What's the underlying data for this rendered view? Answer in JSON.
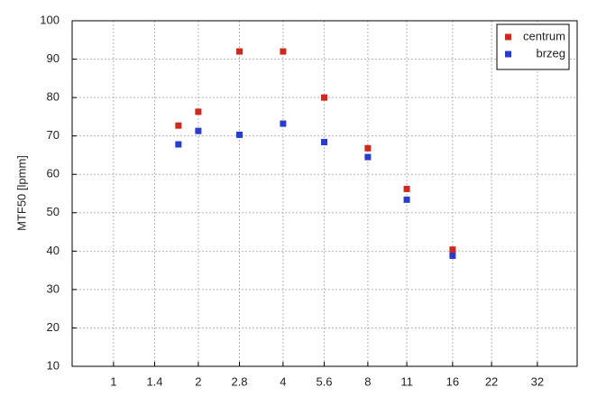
{
  "chart_data": {
    "type": "scatter",
    "y_label": "MTF50 [lpmm]",
    "xscale": "log",
    "xlim": [
      0.713,
      44.3
    ],
    "xticks": [
      1,
      1.4,
      2,
      2.8,
      4,
      5.6,
      8,
      11,
      16,
      22,
      32
    ],
    "ylim": [
      10,
      100
    ],
    "yticks": [
      10,
      20,
      30,
      40,
      50,
      60,
      70,
      80,
      90,
      100
    ],
    "grid": true,
    "legend": "upper right",
    "series": [
      {
        "name": "centrum",
        "color": "#cc2a1e",
        "x": [
          1.7,
          2,
          2.8,
          4,
          5.6,
          8,
          11,
          16
        ],
        "values": [
          72.7,
          76.3,
          92,
          92,
          80,
          66.8,
          56.2,
          40.4
        ]
      },
      {
        "name": "brzeg",
        "color": "#2a3ccc",
        "x": [
          1.7,
          2,
          2.8,
          4,
          5.6,
          8,
          11,
          16
        ],
        "values": [
          67.8,
          71.3,
          70.3,
          73.2,
          68.4,
          64.5,
          53.4,
          38.8
        ]
      }
    ]
  }
}
